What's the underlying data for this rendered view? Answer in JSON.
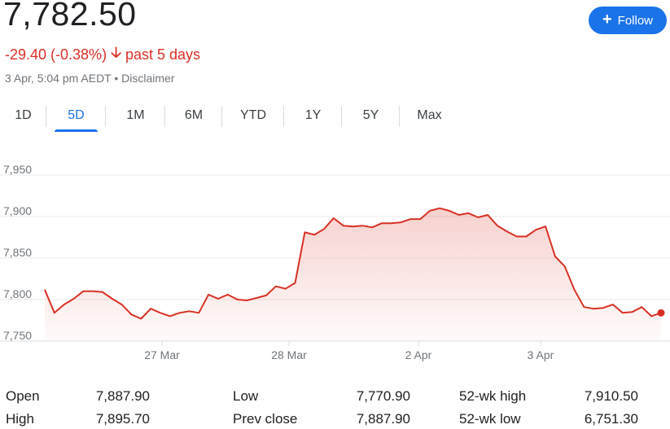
{
  "header": {
    "price": "7,782.50",
    "change": "-29.40 (-0.38%)",
    "period": "past 5 days",
    "timestamp": "3 Apr, 5:04 pm AEDT",
    "separator": "•",
    "disclaimer": "Disclaimer",
    "follow_label": "Follow",
    "change_color": "#d93025",
    "accent_color": "#1a73e8"
  },
  "tabs": [
    {
      "label": "1D",
      "active": false
    },
    {
      "label": "5D",
      "active": true
    },
    {
      "label": "1M",
      "active": false
    },
    {
      "label": "6M",
      "active": false
    },
    {
      "label": "YTD",
      "active": false
    },
    {
      "label": "1Y",
      "active": false
    },
    {
      "label": "5Y",
      "active": false
    },
    {
      "label": "Max",
      "active": false
    }
  ],
  "chart_data": {
    "type": "area",
    "y_ticks": [
      "7,950",
      "7,900",
      "7,850",
      "7,800",
      "7,750"
    ],
    "ylim": [
      7750,
      7950
    ],
    "x_ticks": [
      "27 Mar",
      "28 Mar",
      "2 Apr",
      "3 Apr"
    ],
    "series": [
      {
        "values": [
          7812,
          7784,
          7794,
          7801,
          7810,
          7810,
          7809,
          7801,
          7794,
          7782,
          7777,
          7789,
          7784,
          7780,
          7784,
          7786,
          7784,
          7806,
          7801,
          7806,
          7800,
          7799,
          7802,
          7805,
          7816,
          7813,
          7820,
          7881,
          7878,
          7885,
          7898,
          7889,
          7888,
          7889,
          7887,
          7892,
          7892,
          7893,
          7897,
          7897,
          7907,
          7910,
          7907,
          7902,
          7904,
          7899,
          7902,
          7889,
          7882,
          7876,
          7876,
          7884,
          7888,
          7852,
          7840,
          7812,
          7791,
          7789,
          7790,
          7794,
          7784,
          7785,
          7791,
          7780,
          7784
        ]
      }
    ],
    "line_color": "#d93025",
    "grid": true
  },
  "stats": [
    {
      "label": "Open",
      "value": "7,887.90"
    },
    {
      "label": "High",
      "value": "7,895.70"
    },
    {
      "label": "Low",
      "value": "7,770.90"
    },
    {
      "label": "Prev close",
      "value": "7,887.90"
    },
    {
      "label": "52-wk high",
      "value": "7,910.50"
    },
    {
      "label": "52-wk low",
      "value": "6,751.30"
    }
  ]
}
